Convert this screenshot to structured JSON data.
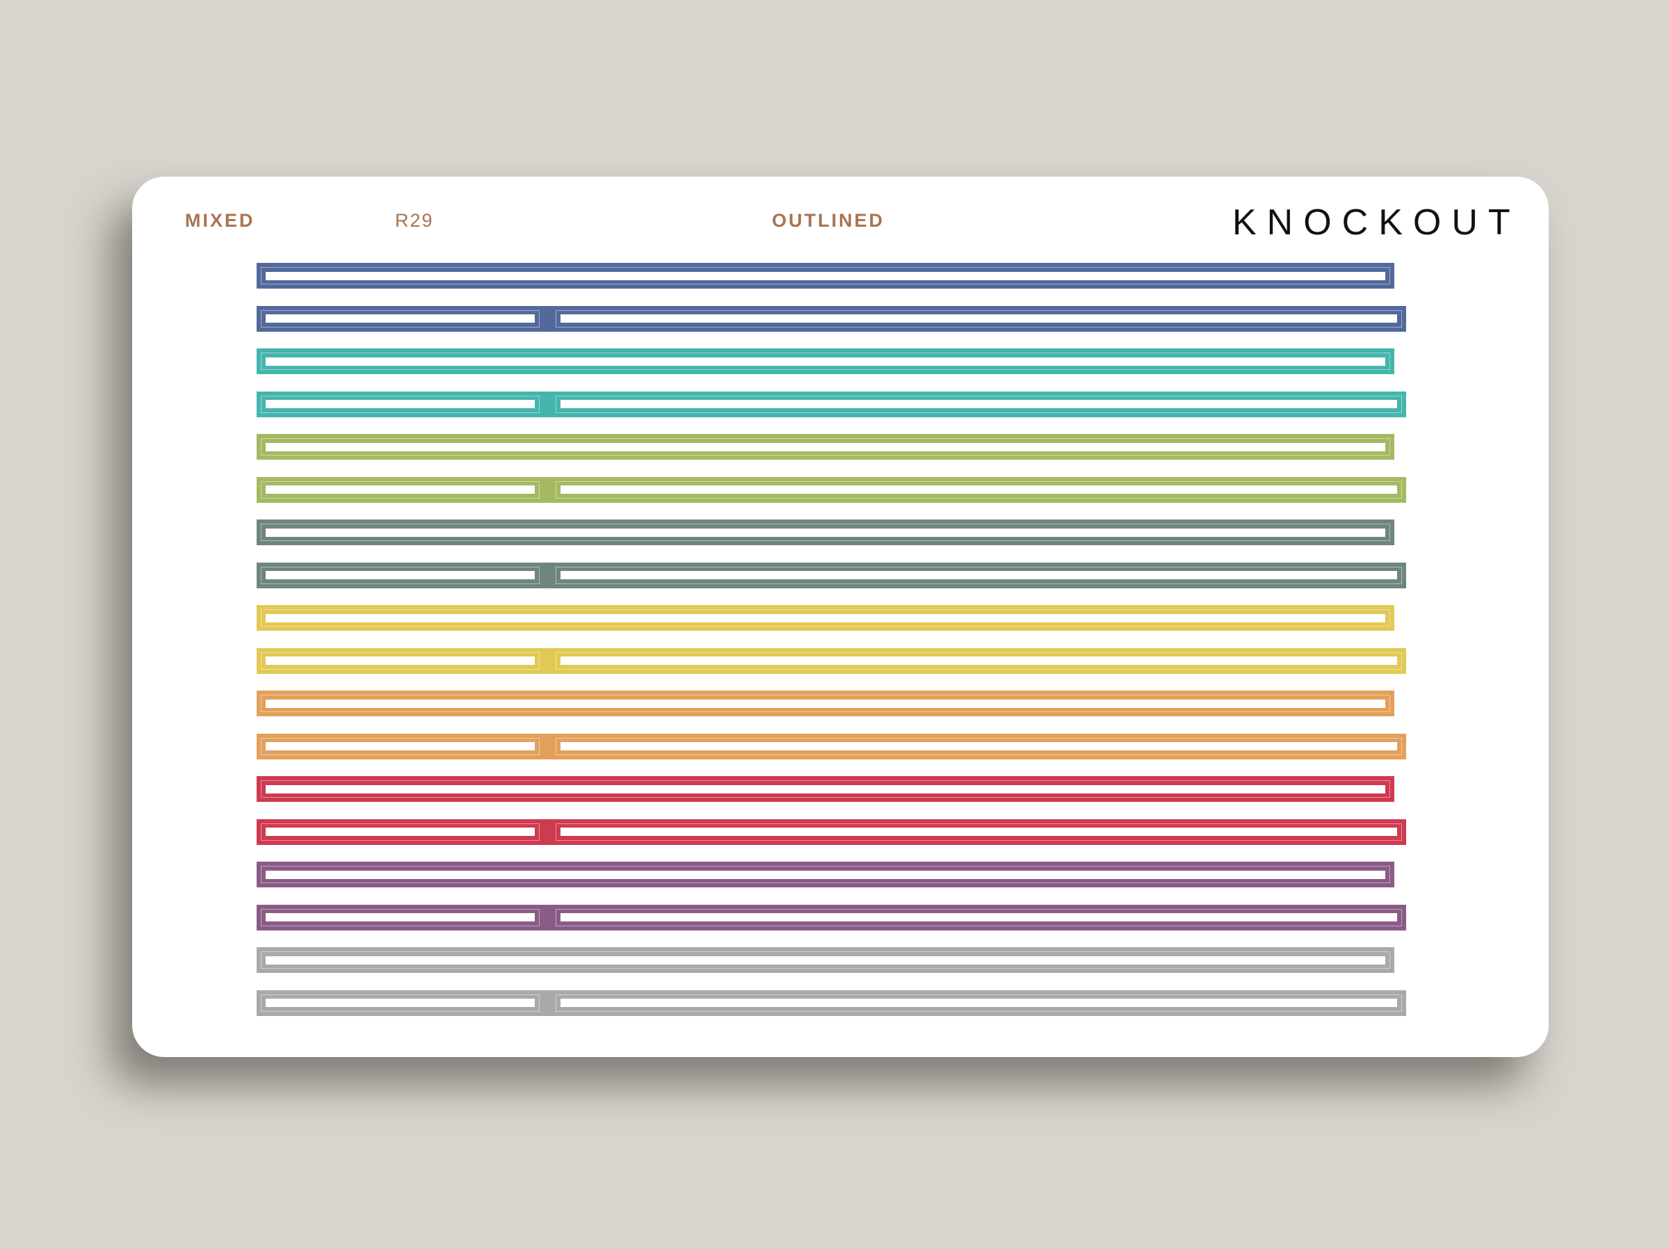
{
  "header": {
    "category": "MIXED",
    "code": "R29",
    "style": "OUTLINED",
    "brand": "KNOCKOUT"
  },
  "colors": {
    "label": "#a87450",
    "background": "#d8d4ce"
  },
  "rows": [
    {
      "color": "#52699a",
      "split": false
    },
    {
      "color": "#52699a",
      "split": true
    },
    {
      "color": "#45b5ad",
      "split": false
    },
    {
      "color": "#45b5ad",
      "split": true
    },
    {
      "color": "#a4b962",
      "split": false
    },
    {
      "color": "#a4b962",
      "split": true
    },
    {
      "color": "#6f8580",
      "split": false
    },
    {
      "color": "#6f8580",
      "split": true
    },
    {
      "color": "#e2c955",
      "split": false
    },
    {
      "color": "#e2c955",
      "split": true
    },
    {
      "color": "#e2a05b",
      "split": false
    },
    {
      "color": "#e2a05b",
      "split": true
    },
    {
      "color": "#cf3a51",
      "split": false
    },
    {
      "color": "#cf3a51",
      "split": true
    },
    {
      "color": "#8a5b86",
      "split": false
    },
    {
      "color": "#8a5b86",
      "split": true
    },
    {
      "color": "#a9a9a9",
      "split": false
    },
    {
      "color": "#a9a9a9",
      "split": true
    }
  ]
}
